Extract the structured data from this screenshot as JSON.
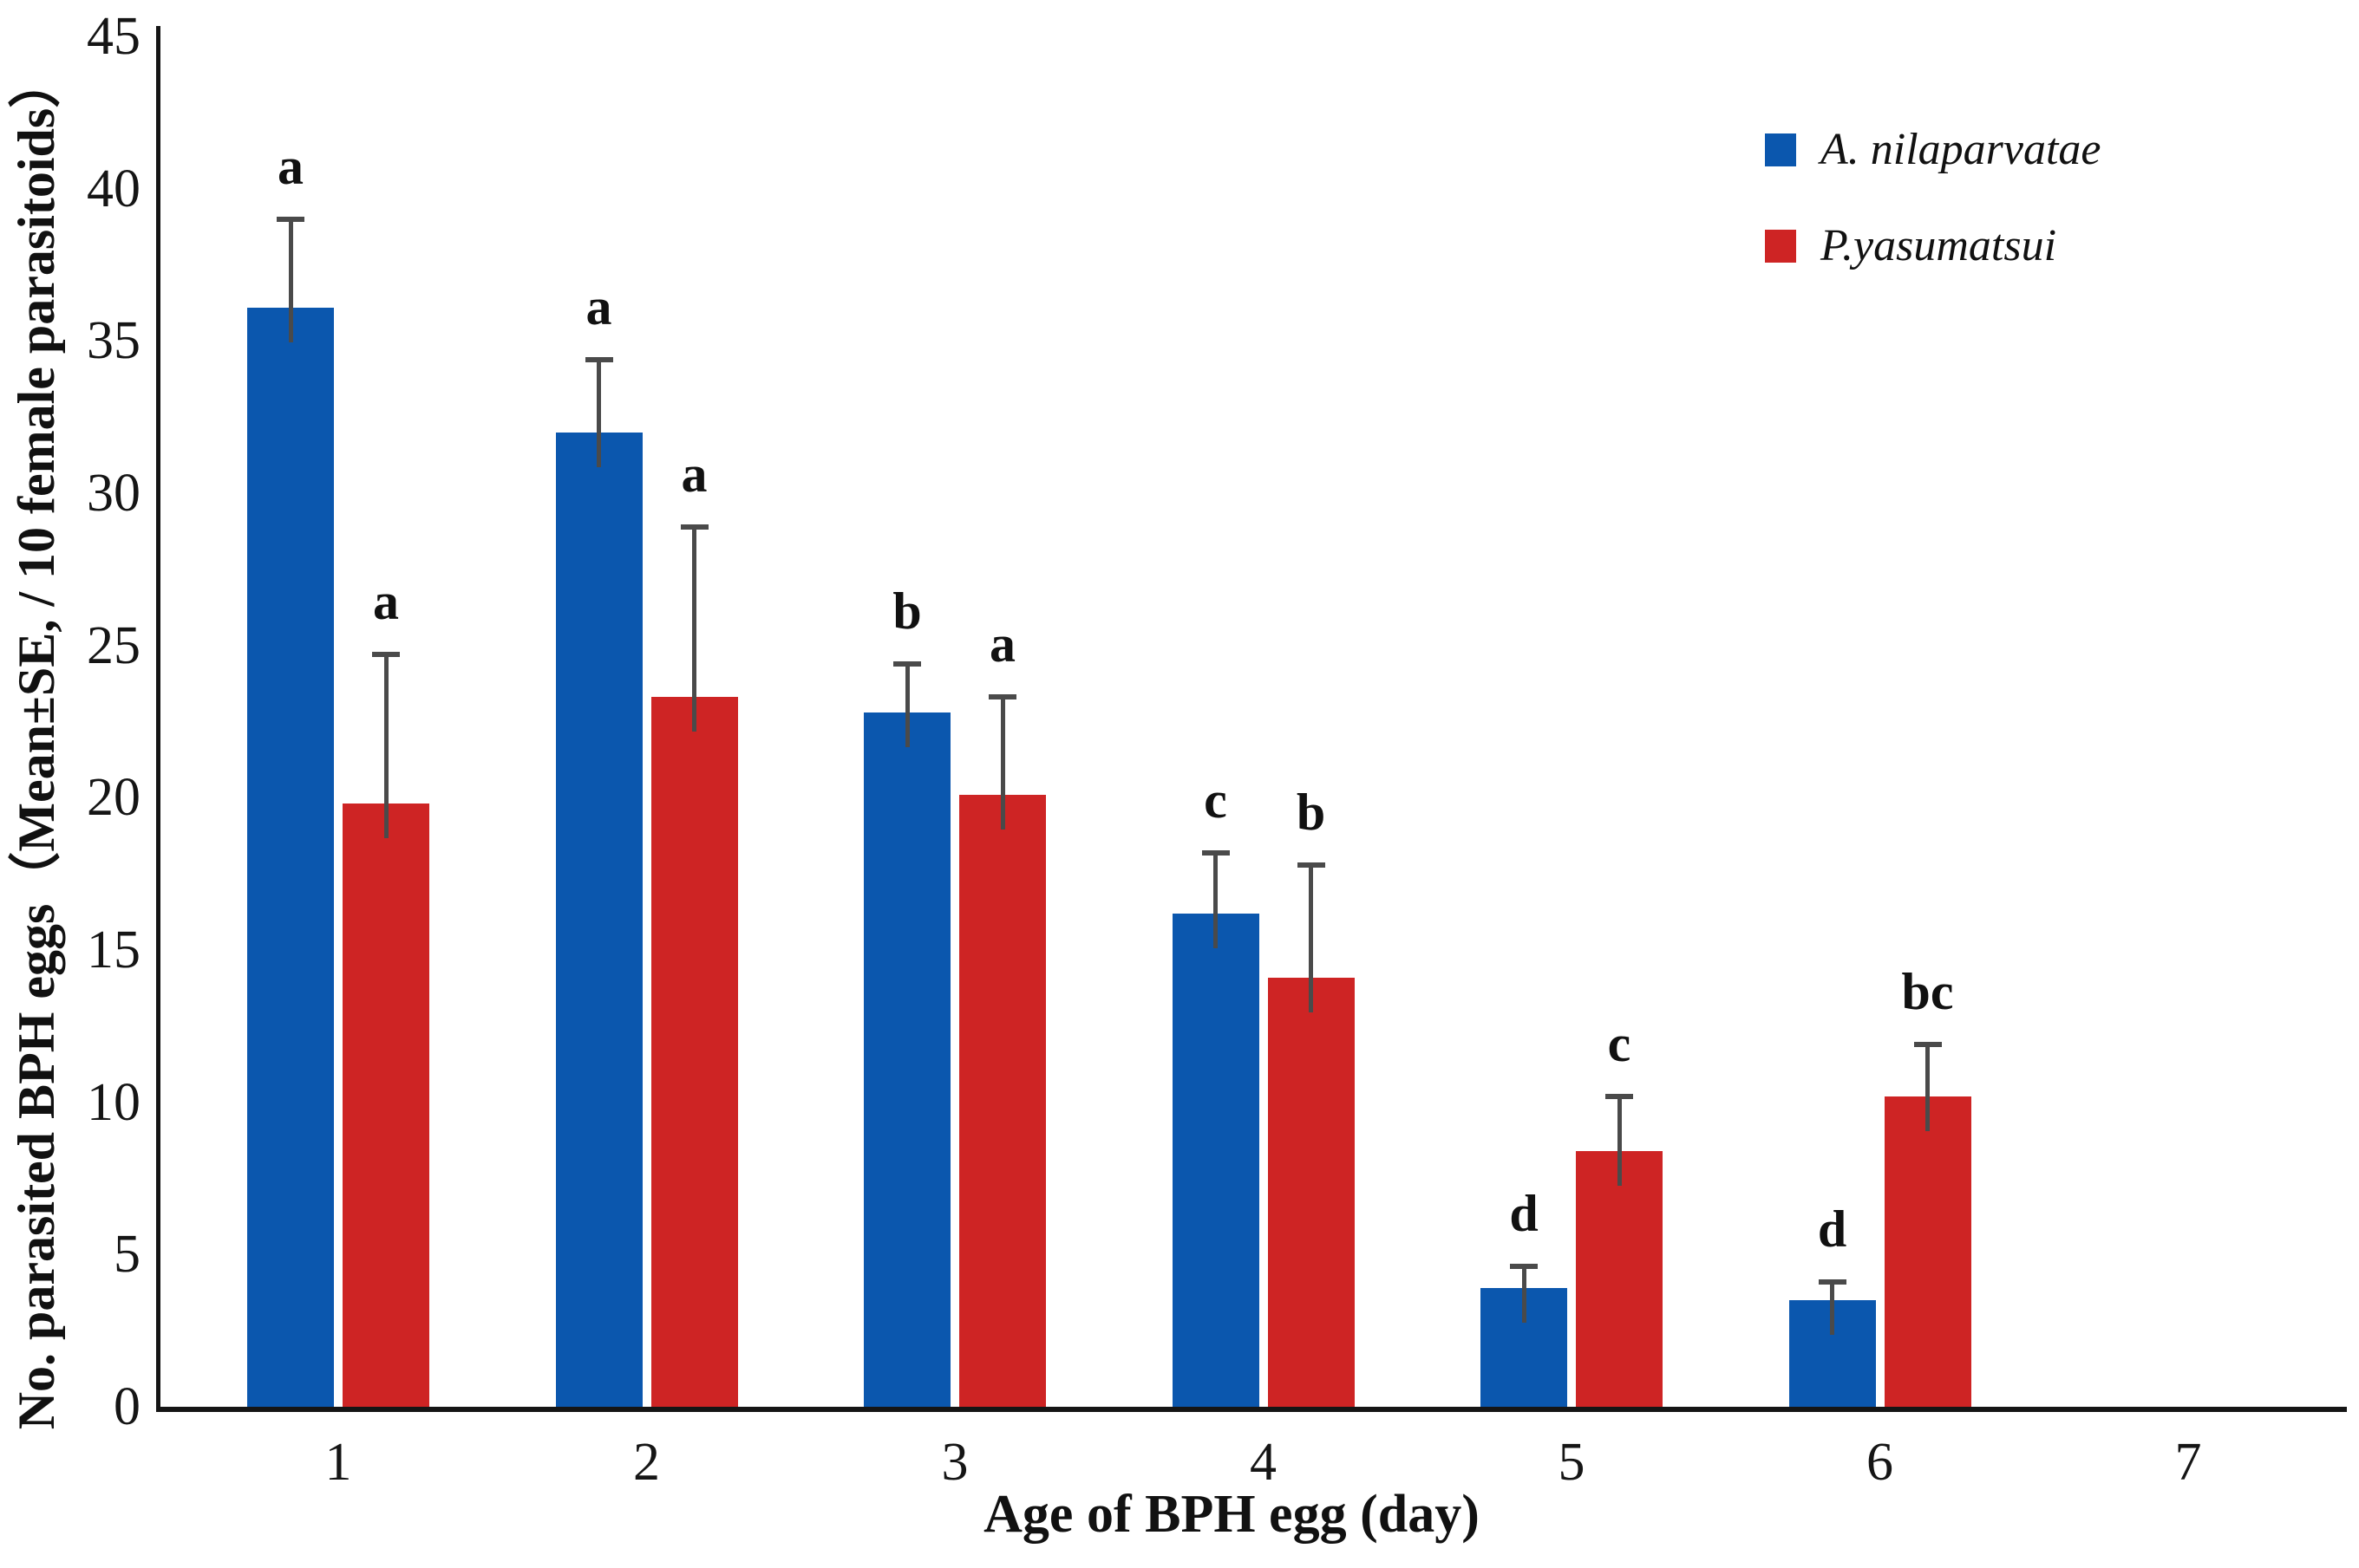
{
  "chart_data": {
    "type": "bar",
    "title": "",
    "xlabel": "Age of BPH egg (day)",
    "ylabel": "No. parasited BPH eggs（Mean±SE, / 10 female parasitoids）",
    "categories": [
      "1",
      "2",
      "3",
      "4",
      "5",
      "6",
      "7"
    ],
    "ylim": [
      0,
      45
    ],
    "ytick_step": 5,
    "grid": false,
    "legend_position": "top-right",
    "series": [
      {
        "name": "A. nilaparvatae",
        "color": "#0b57ae",
        "values": [
          36.1,
          32.0,
          22.8,
          16.2,
          3.9,
          3.5,
          0
        ],
        "se_upper": [
          2.9,
          2.4,
          1.6,
          2.0,
          0.7,
          0.6,
          0
        ],
        "letters": [
          "a",
          "a",
          "b",
          "c",
          "d",
          "d",
          ""
        ]
      },
      {
        "name": "P.yasumatsui",
        "color": "#ce2424",
        "values": [
          19.8,
          23.3,
          20.1,
          14.1,
          8.4,
          10.2,
          0
        ],
        "se_upper": [
          4.9,
          5.6,
          3.2,
          3.7,
          1.8,
          1.7,
          0
        ],
        "letters": [
          "a",
          "a",
          "a",
          "b",
          "c",
          "bc",
          ""
        ]
      }
    ],
    "error_bar_color": "#4a4a4a",
    "axis_color": "#151515"
  }
}
